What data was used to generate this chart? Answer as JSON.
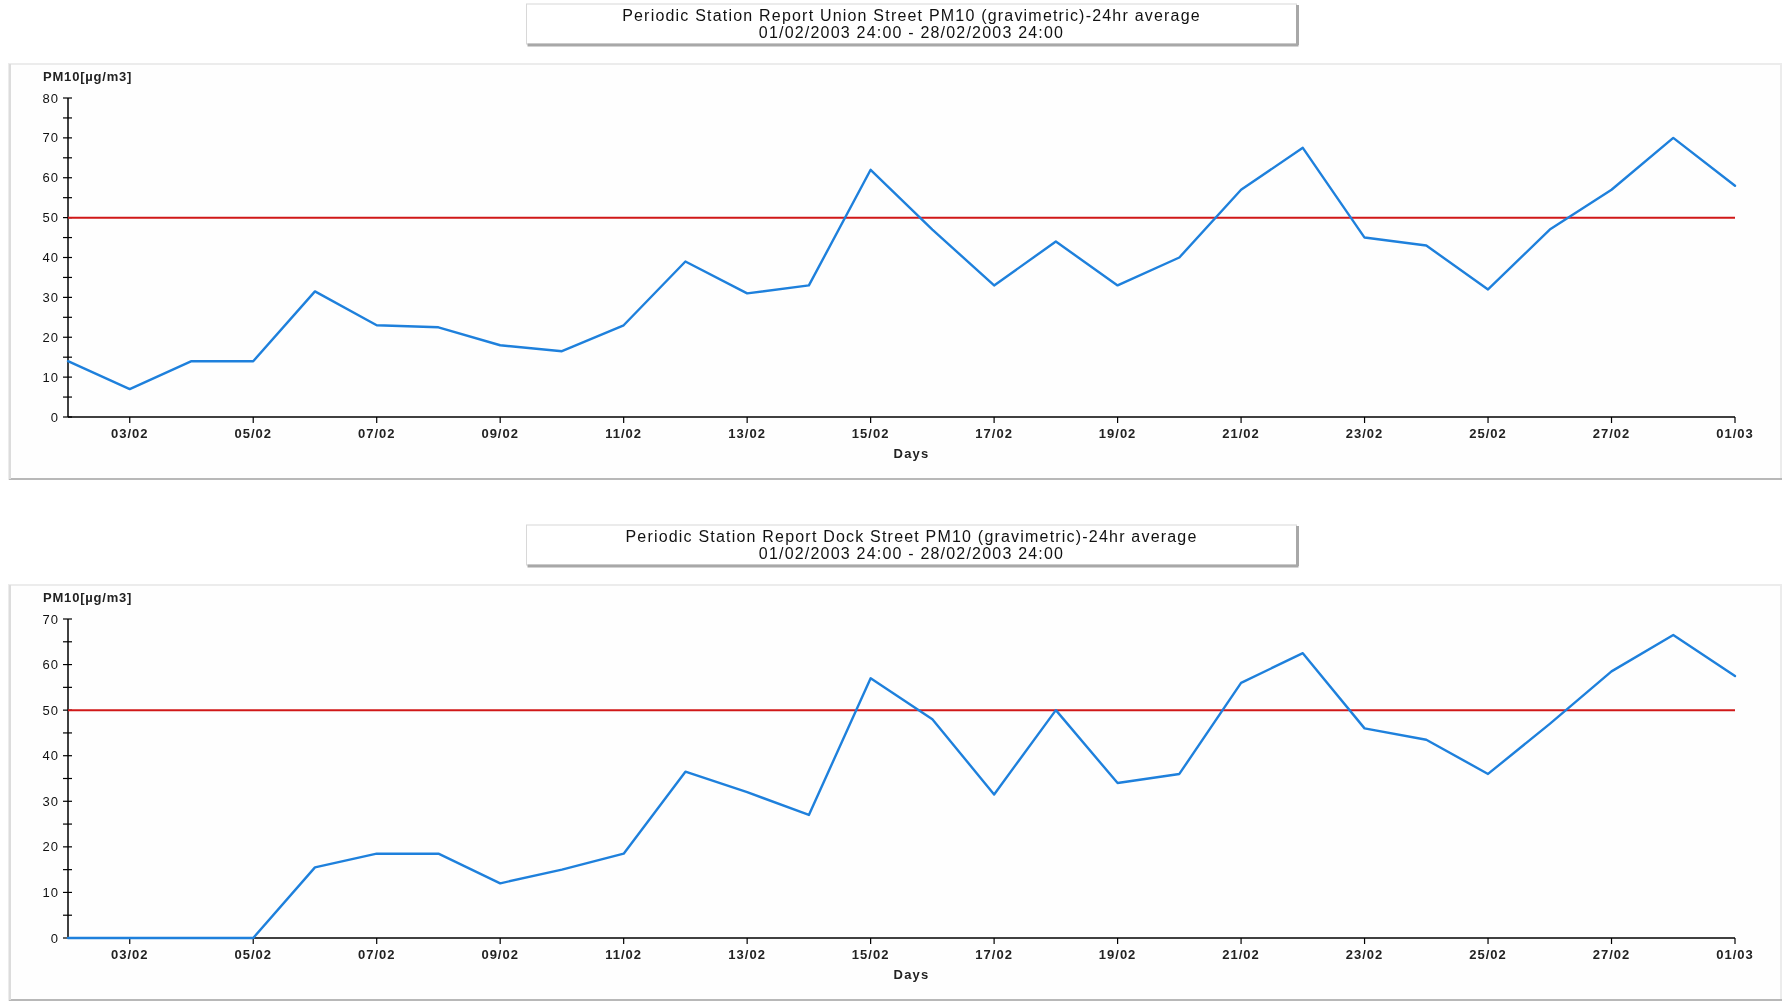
{
  "chart_data": [
    {
      "type": "line",
      "title": "Periodic Station Report Union Street PM10 (gravimetric)-24hr average",
      "subtitle": "01/02/2003 24:00 - 28/02/2003 24:00",
      "ylabel": "PM10[µg/m3]",
      "xlabel": "Days",
      "x": [
        "--02-02",
        "--02-03",
        "--02-04",
        "--02-05",
        "--02-06",
        "--02-07",
        "--02-08",
        "--02-09",
        "--02-10",
        "--02-11",
        "--02-12",
        "--02-13",
        "--02-14",
        "--02-15",
        "--02-16",
        "--02-17",
        "--02-18",
        "--02-19",
        "--02-20",
        "--02-21",
        "--02-22",
        "--02-23",
        "--02-24",
        "--02-25",
        "--02-26",
        "--02-27",
        "--02-28",
        "--03-01"
      ],
      "series": [
        {
          "color": "#1e80dc",
          "values": [
            14,
            7,
            14,
            14,
            31.5,
            23,
            22.5,
            18,
            16.5,
            23,
            39,
            31,
            33,
            62,
            47,
            33,
            44,
            33,
            40,
            57,
            67.5,
            45,
            43,
            32,
            47,
            57,
            70,
            58
          ]
        }
      ],
      "xlim": [
        "--02-02",
        "--03-01"
      ],
      "xticks": [
        {
          "value": "--02-03",
          "label": "03/02"
        },
        {
          "value": "--02-05",
          "label": "05/02"
        },
        {
          "value": "--02-07",
          "label": "07/02"
        },
        {
          "value": "--02-09",
          "label": "09/02"
        },
        {
          "value": "--02-11",
          "label": "11/02"
        },
        {
          "value": "--02-13",
          "label": "13/02"
        },
        {
          "value": "--02-15",
          "label": "15/02"
        },
        {
          "value": "--02-17",
          "label": "17/02"
        },
        {
          "value": "--02-19",
          "label": "19/02"
        },
        {
          "value": "--02-21",
          "label": "21/02"
        },
        {
          "value": "--02-23",
          "label": "23/02"
        },
        {
          "value": "--02-25",
          "label": "25/02"
        },
        {
          "value": "--02-27",
          "label": "27/02"
        },
        {
          "value": "--03-01",
          "label": "01/03"
        }
      ],
      "ylim": [
        0,
        80
      ],
      "yticks": [
        0,
        {
          "value": 5,
          "label": null
        },
        10,
        {
          "value": 15,
          "label": null
        },
        20,
        {
          "value": 25,
          "label": null
        },
        30,
        {
          "value": 35,
          "label": null
        },
        40,
        {
          "value": 45,
          "label": null
        },
        50,
        {
          "value": 55,
          "label": null
        },
        60,
        {
          "value": 65,
          "label": null
        },
        70,
        {
          "value": 75,
          "label": null
        },
        80
      ],
      "ref_lines": [
        {
          "axis": "y",
          "value": 50,
          "color": "#d01818"
        }
      ]
    },
    {
      "type": "line",
      "title": "Periodic Station Report Dock Street PM10 (gravimetric)-24hr average",
      "subtitle": "01/02/2003 24:00 - 28/02/2003 24:00",
      "ylabel": "PM10[µg/m3]",
      "xlabel": "Days",
      "x": [
        "--02-02",
        "--02-03",
        "--02-04",
        "--02-05",
        "--02-06",
        "--02-07",
        "--02-08",
        "--02-09",
        "--02-10",
        "--02-11",
        "--02-12",
        "--02-13",
        "--02-14",
        "--02-15",
        "--02-16",
        "--02-17",
        "--02-18",
        "--02-19",
        "--02-20",
        "--02-21",
        "--02-22",
        "--02-23",
        "--02-24",
        "--02-25",
        "--02-26",
        "--02-27",
        "--02-28",
        "--03-01"
      ],
      "series": [
        {
          "color": "#1e80dc",
          "values": [
            0,
            0,
            0,
            0,
            15.5,
            18.5,
            18.5,
            12,
            15,
            18.5,
            36.5,
            32,
            27,
            57,
            48,
            31.5,
            50,
            34,
            36,
            56,
            62.5,
            46,
            43.5,
            36,
            47,
            58.5,
            66.5,
            57.5
          ]
        }
      ],
      "xlim": [
        "--02-02",
        "--03-01"
      ],
      "xticks": [
        {
          "value": "--02-03",
          "label": "03/02"
        },
        {
          "value": "--02-05",
          "label": "05/02"
        },
        {
          "value": "--02-07",
          "label": "07/02"
        },
        {
          "value": "--02-09",
          "label": "09/02"
        },
        {
          "value": "--02-11",
          "label": "11/02"
        },
        {
          "value": "--02-13",
          "label": "13/02"
        },
        {
          "value": "--02-15",
          "label": "15/02"
        },
        {
          "value": "--02-17",
          "label": "17/02"
        },
        {
          "value": "--02-19",
          "label": "19/02"
        },
        {
          "value": "--02-21",
          "label": "21/02"
        },
        {
          "value": "--02-23",
          "label": "23/02"
        },
        {
          "value": "--02-25",
          "label": "25/02"
        },
        {
          "value": "--02-27",
          "label": "27/02"
        },
        {
          "value": "--03-01",
          "label": "01/03"
        }
      ],
      "ylim": [
        0,
        70
      ],
      "yticks": [
        0,
        {
          "value": 5,
          "label": null
        },
        10,
        {
          "value": 15,
          "label": null
        },
        20,
        {
          "value": 25,
          "label": null
        },
        30,
        {
          "value": 35,
          "label": null
        },
        40,
        {
          "value": 45,
          "label": null
        },
        50,
        {
          "value": 55,
          "label": null
        },
        60,
        {
          "value": 65,
          "label": null
        },
        70
      ],
      "ref_lines": [
        {
          "axis": "y",
          "value": 50,
          "color": "#d01818"
        }
      ]
    }
  ]
}
